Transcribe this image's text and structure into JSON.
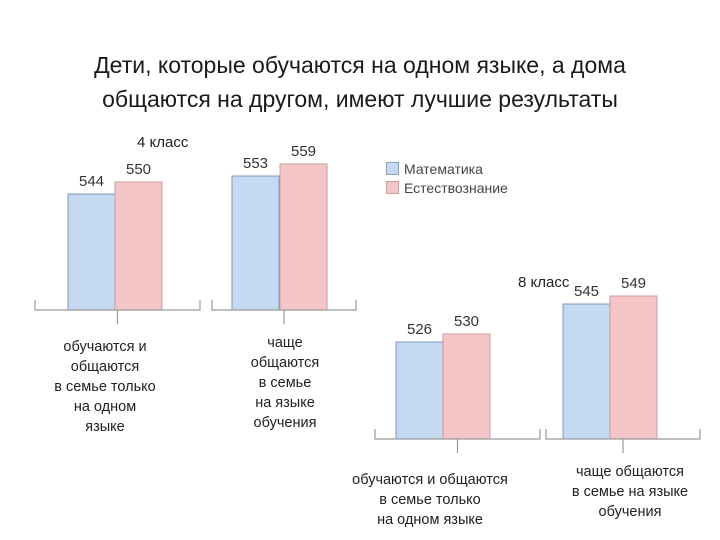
{
  "title": {
    "line1": "Дети, которые обучаются на одном языке, а дома",
    "line2": "общаются на другом, имеют лучшие результаты"
  },
  "legend": {
    "items": [
      {
        "label": "Математика",
        "color": "#c5d9f1"
      },
      {
        "label": "Естествознание",
        "color": "#f5c6c7"
      }
    ]
  },
  "chart_data": [
    {
      "type": "bar",
      "title": "4 класс",
      "categories": [
        "обучаются и общаются в семье только на одном языке",
        "чаще общаются в семье на языке обучения"
      ],
      "series": [
        {
          "name": "Математика",
          "values": [
            544,
            553
          ]
        },
        {
          "name": "Естествознание",
          "values": [
            550,
            559
          ]
        }
      ],
      "colors": [
        "#c5d9f1",
        "#f5c6c7"
      ],
      "legend": "top-right",
      "grid": false
    },
    {
      "type": "bar",
      "title": "8 класс",
      "categories": [
        "обучаются и общаются в семье только на одном языке",
        "чаще общаются в семье на языке обучения"
      ],
      "series": [
        {
          "name": "Математика",
          "values": [
            526,
            545
          ]
        },
        {
          "name": "Естествознание",
          "values": [
            530,
            549
          ]
        }
      ],
      "colors": [
        "#c5d9f1",
        "#f5c6c7"
      ],
      "legend": "top-right",
      "grid": false
    }
  ],
  "labels": {
    "g4": [
      "обучаются и",
      "общаются",
      "в семье только",
      "на одном",
      "языке"
    ],
    "g4b": [
      "чаще",
      "общаются",
      "в семье",
      "на языке",
      "обучения"
    ],
    "g8": [
      "обучаются и общаются",
      "в семье только",
      "на одном языке"
    ],
    "g8b": [
      "чаще общаются",
      "в семье на языке",
      "обучения"
    ]
  }
}
